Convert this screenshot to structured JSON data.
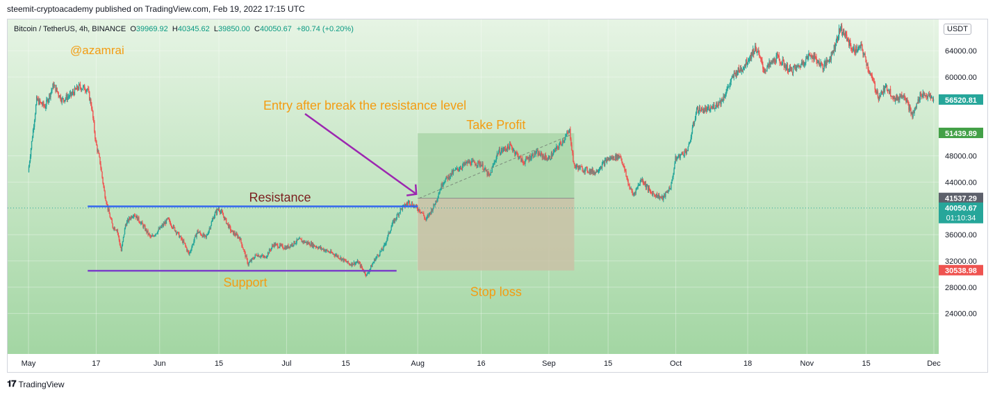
{
  "header": {
    "publish_credit": "steemit-cryptoacademy published on TradingView.com, Feb 19, 2022 17:15 UTC"
  },
  "symbol_info": {
    "name": "Bitcoin / TetherUS, 4h, BINANCE",
    "open_label": "O",
    "open": "39969.92",
    "high_label": "H",
    "high": "40345.62",
    "low_label": "L",
    "low": "39850.00",
    "close_label": "C",
    "close": "40050.67",
    "change": "+80.74 (+0.20%)"
  },
  "currency_button": "USDT",
  "footer": {
    "logo_text": "TradingView",
    "logo_icon": "tradingview-logo-icon"
  },
  "colors": {
    "bg_top": "#e6f4e4",
    "bg_bottom": "#a3d6a3",
    "bull": "#26a69a",
    "bear": "#ef5350",
    "resistance_line": "#3366ee",
    "support_line": "#7a3ec8",
    "arrow": "#9c27b0",
    "annotation_orange": "#f39c12",
    "annotation_resistance": "#7b1e1e",
    "take_profit_zone": "#a8d5a6",
    "stop_loss_zone": "#c9c1a6"
  },
  "chart_data": {
    "type": "candlestick",
    "timeframe": "4h",
    "y_axis": {
      "range": [
        21000,
        67500
      ],
      "ticks": [
        {
          "value": 64000,
          "label": "64000.00"
        },
        {
          "value": 60000,
          "label": "60000.00"
        },
        {
          "value": 48000,
          "label": "48000.00"
        },
        {
          "value": 44000,
          "label": "44000.00"
        },
        {
          "value": 36000,
          "label": "36000.00"
        },
        {
          "value": 32000,
          "label": "32000.00"
        },
        {
          "value": 28000,
          "label": "28000.00"
        },
        {
          "value": 24000,
          "label": "24000.00"
        }
      ]
    },
    "x_axis": {
      "range": [
        "2021-05-01",
        "2021-12-01"
      ],
      "ticks": [
        {
          "date": "2021-05-01",
          "label": "May"
        },
        {
          "date": "2021-05-17",
          "label": "17"
        },
        {
          "date": "2021-06-01",
          "label": "Jun"
        },
        {
          "date": "2021-06-15",
          "label": "15"
        },
        {
          "date": "2021-07-01",
          "label": "Jul"
        },
        {
          "date": "2021-07-15",
          "label": "15"
        },
        {
          "date": "2021-08-01",
          "label": "Aug"
        },
        {
          "date": "2021-08-16",
          "label": "16"
        },
        {
          "date": "2021-09-01",
          "label": "Sep"
        },
        {
          "date": "2021-09-15",
          "label": "15"
        },
        {
          "date": "2021-10-01",
          "label": "Oct"
        },
        {
          "date": "2021-10-18",
          "label": "18"
        },
        {
          "date": "2021-11-01",
          "label": "Nov"
        },
        {
          "date": "2021-11-15",
          "label": "15"
        },
        {
          "date": "2021-12-01",
          "label": "Dec"
        }
      ]
    },
    "price_labels": [
      {
        "value": 56520.81,
        "label": "56520.81",
        "color": "#26a69a"
      },
      {
        "value": 51439.89,
        "label": "51439.89",
        "color": "#43a047"
      },
      {
        "value": 41537.29,
        "label": "41537.29",
        "color": "#5d606b"
      },
      {
        "value": 40050.67,
        "label": "40050.67",
        "sub": "01:10:34",
        "color": "#26a69a"
      },
      {
        "value": 30538.98,
        "label": "30538.98",
        "color": "#ef5350"
      }
    ],
    "last_price": 40050.67,
    "price_path": [
      [
        "2021-05-01",
        45500
      ],
      [
        "2021-05-03",
        56500
      ],
      [
        "2021-05-05",
        55500
      ],
      [
        "2021-05-07",
        58800
      ],
      [
        "2021-05-09",
        56500
      ],
      [
        "2021-05-11",
        57200
      ],
      [
        "2021-05-13",
        58500
      ],
      [
        "2021-05-15",
        58200
      ],
      [
        "2021-05-16",
        55500
      ],
      [
        "2021-05-17",
        50000
      ],
      [
        "2021-05-18",
        47000
      ],
      [
        "2021-05-19",
        42500
      ],
      [
        "2021-05-20",
        39500
      ],
      [
        "2021-05-21",
        37200
      ],
      [
        "2021-05-22",
        36800
      ],
      [
        "2021-05-23",
        33500
      ],
      [
        "2021-05-24",
        37500
      ],
      [
        "2021-05-25",
        38500
      ],
      [
        "2021-05-26",
        39200
      ],
      [
        "2021-05-28",
        37500
      ],
      [
        "2021-05-30",
        35500
      ],
      [
        "2021-06-01",
        36800
      ],
      [
        "2021-06-03",
        38300
      ],
      [
        "2021-06-05",
        36500
      ],
      [
        "2021-06-07",
        34500
      ],
      [
        "2021-06-08",
        33000
      ],
      [
        "2021-06-10",
        36500
      ],
      [
        "2021-06-12",
        35500
      ],
      [
        "2021-06-14",
        39000
      ],
      [
        "2021-06-15",
        40000
      ],
      [
        "2021-06-16",
        39000
      ],
      [
        "2021-06-18",
        36500
      ],
      [
        "2021-06-20",
        35500
      ],
      [
        "2021-06-21",
        33500
      ],
      [
        "2021-06-22",
        31500
      ],
      [
        "2021-06-24",
        33000
      ],
      [
        "2021-06-26",
        32500
      ],
      [
        "2021-06-28",
        34500
      ],
      [
        "2021-07-01",
        34000
      ],
      [
        "2021-07-04",
        35200
      ],
      [
        "2021-07-07",
        34500
      ],
      [
        "2021-07-10",
        33700
      ],
      [
        "2021-07-13",
        32800
      ],
      [
        "2021-07-16",
        31500
      ],
      [
        "2021-07-18",
        31800
      ],
      [
        "2021-07-20",
        29800
      ],
      [
        "2021-07-22",
        32300
      ],
      [
        "2021-07-24",
        34000
      ],
      [
        "2021-07-26",
        37500
      ],
      [
        "2021-07-28",
        39800
      ],
      [
        "2021-07-30",
        41000
      ],
      [
        "2021-08-02",
        39500
      ],
      [
        "2021-08-03",
        38200
      ],
      [
        "2021-08-05",
        40500
      ],
      [
        "2021-08-07",
        44000
      ],
      [
        "2021-08-10",
        45800
      ],
      [
        "2021-08-13",
        47000
      ],
      [
        "2021-08-16",
        46800
      ],
      [
        "2021-08-18",
        44800
      ],
      [
        "2021-08-20",
        48500
      ],
      [
        "2021-08-23",
        49500
      ],
      [
        "2021-08-26",
        47000
      ],
      [
        "2021-08-29",
        48500
      ],
      [
        "2021-09-01",
        47500
      ],
      [
        "2021-09-04",
        50000
      ],
      [
        "2021-09-06",
        51800
      ],
      [
        "2021-09-07",
        46500
      ],
      [
        "2021-09-09",
        46000
      ],
      [
        "2021-09-12",
        45500
      ],
      [
        "2021-09-15",
        47500
      ],
      [
        "2021-09-18",
        48000
      ],
      [
        "2021-09-20",
        43500
      ],
      [
        "2021-09-21",
        42000
      ],
      [
        "2021-09-23",
        44500
      ],
      [
        "2021-09-25",
        42500
      ],
      [
        "2021-09-28",
        41500
      ],
      [
        "2021-09-30",
        43500
      ],
      [
        "2021-10-01",
        47500
      ],
      [
        "2021-10-04",
        49000
      ],
      [
        "2021-10-06",
        55000
      ],
      [
        "2021-10-09",
        55000
      ],
      [
        "2021-10-12",
        56500
      ],
      [
        "2021-10-15",
        60500
      ],
      [
        "2021-10-17",
        61500
      ],
      [
        "2021-10-20",
        64500
      ],
      [
        "2021-10-22",
        61000
      ],
      [
        "2021-10-25",
        63000
      ],
      [
        "2021-10-28",
        61000
      ],
      [
        "2021-10-30",
        61500
      ],
      [
        "2021-11-02",
        63500
      ],
      [
        "2021-11-05",
        61500
      ],
      [
        "2021-11-07",
        63500
      ],
      [
        "2021-11-09",
        67500
      ],
      [
        "2021-11-10",
        66500
      ],
      [
        "2021-11-12",
        64000
      ],
      [
        "2021-11-14",
        64500
      ],
      [
        "2021-11-16",
        60500
      ],
      [
        "2021-11-18",
        57000
      ],
      [
        "2021-11-20",
        58500
      ],
      [
        "2021-11-22",
        56500
      ],
      [
        "2021-11-24",
        57500
      ],
      [
        "2021-11-26",
        54000
      ],
      [
        "2021-11-28",
        57500
      ],
      [
        "2021-11-30",
        57000
      ],
      [
        "2021-12-01",
        56500
      ]
    ],
    "drawings": {
      "resistance": {
        "label": "Resistance",
        "from": "2021-05-15",
        "to": "2021-08-01",
        "price": 40300
      },
      "support": {
        "label": "Support",
        "from": "2021-05-15",
        "to": "2021-07-27",
        "price": 30500
      },
      "position": {
        "from": "2021-08-01",
        "to": "2021-09-07",
        "entry": 41537.29,
        "target": 51439.89,
        "stop": 30538.98,
        "take_profit_label": "Take Profit",
        "stop_loss_label": "Stop loss"
      },
      "entry_arrow": {
        "label": "Entry after break the resistance level"
      },
      "author": "@azamrai"
    }
  }
}
